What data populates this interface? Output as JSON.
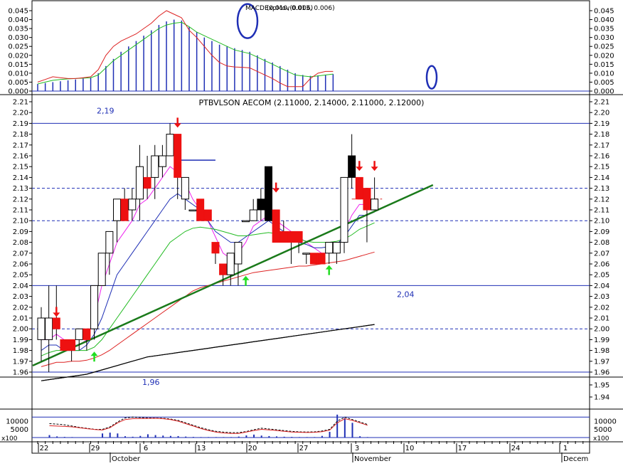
{
  "colors": {
    "background": "#ffffff",
    "frame": "#000000",
    "blue": "#1f2fb5",
    "up_candle": "#ffffff",
    "down_candle": "#ee1111",
    "black_candle": "#000000",
    "magenta": "#ee22ee",
    "green_ma": "#22bb22",
    "red_line": "#dd2222",
    "trendline": "#1a7a1a",
    "arrow_down": "#ee1111",
    "arrow_up": "#22dd22",
    "dashed": "#1f2fb5"
  },
  "chart_data": [
    {
      "id": "macd",
      "type": "line",
      "title": "MACD (0.010, 0.013, 0.006)",
      "title_overlap": "ExpMov(0.006)",
      "yticks": [
        "0.045",
        "0.040",
        "0.035",
        "0.030",
        "0.025",
        "0.020",
        "0.015",
        "0.010",
        "0.005",
        "0.000"
      ],
      "ylim": [
        0,
        0.048
      ],
      "series": [
        {
          "color": "red",
          "values": [
            0.005,
            0.0065,
            0.008,
            0.0075,
            0.007,
            0.007,
            0.0075,
            0.008,
            0.012,
            0.02,
            0.025,
            0.028,
            0.03,
            0.032,
            0.035,
            0.038,
            0.042,
            0.045,
            0.043,
            0.041,
            0.034,
            0.03,
            0.025,
            0.02,
            0.016,
            0.014,
            0.0135,
            0.0133,
            0.013,
            0.011,
            0.009,
            0.007,
            0.0045,
            0.0025,
            0.0025,
            0.0025,
            0.007,
            0.01,
            0.011,
            0.011
          ]
        },
        {
          "color": "green",
          "values": [
            0.004,
            0.005,
            0.006,
            0.0065,
            0.0068,
            0.007,
            0.0072,
            0.0075,
            0.009,
            0.013,
            0.017,
            0.02,
            0.023,
            0.026,
            0.029,
            0.032,
            0.035,
            0.037,
            0.038,
            0.0385,
            0.036,
            0.033,
            0.031,
            0.029,
            0.027,
            0.025,
            0.023,
            0.022,
            0.021,
            0.019,
            0.017,
            0.015,
            0.013,
            0.011,
            0.009,
            0.0085,
            0.008,
            0.0085,
            0.009,
            0.0095
          ]
        }
      ],
      "histogram": [
        0.004,
        0.0045,
        0.005,
        0.0055,
        0.006,
        0.0065,
        0.007,
        0.0075,
        0.01,
        0.014,
        0.018,
        0.022,
        0.025,
        0.028,
        0.031,
        0.034,
        0.037,
        0.039,
        0.04,
        0.0395,
        0.036,
        0.033,
        0.03,
        0.028,
        0.026,
        0.025,
        0.024,
        0.023,
        0.022,
        0.02,
        0.018,
        0.016,
        0.014,
        0.012,
        0.01,
        0.009,
        0.0085,
        0.0088,
        0.009,
        0.0095
      ],
      "circles_at_index": [
        20,
        37
      ]
    },
    {
      "id": "price",
      "type": "candlestick",
      "title": "PTBVLSON AECOM (2.11000, 2.14000, 2.11000, 2.12000)",
      "yticks": [
        "2.21",
        "2.20",
        "2.19",
        "2.18",
        "2.17",
        "2.16",
        "2.15",
        "2.14",
        "2.13",
        "2.12",
        "2.11",
        "2.10",
        "2.09",
        "2.08",
        "2.07",
        "2.06",
        "2.05",
        "2.04",
        "2.03",
        "2.02",
        "2.01",
        "2.00",
        "1.99",
        "1.98",
        "1.97",
        "1.96"
      ],
      "ylim": [
        1.96,
        2.21
      ],
      "level_labels": [
        {
          "text": "2,19",
          "value": 2.19
        },
        {
          "text": "2,04",
          "value": 2.04
        }
      ],
      "hlines_solid": [
        2.19,
        2.04,
        1.96
      ],
      "hlines_dashed": [
        2.13,
        2.1,
        2.0
      ],
      "candles": [
        {
          "o": 1.99,
          "h": 2.02,
          "l": 1.97,
          "c": 2.01,
          "k": "up"
        },
        {
          "o": 2.01,
          "h": 2.04,
          "l": 1.96,
          "c": 1.99,
          "k": "up"
        },
        {
          "o": 2.01,
          "h": 2.04,
          "l": 1.99,
          "c": 2.0,
          "k": "down"
        },
        {
          "o": 1.99,
          "h": 1.99,
          "l": 1.98,
          "c": 1.98,
          "k": "down"
        },
        {
          "o": 1.99,
          "h": 1.99,
          "l": 1.97,
          "c": 1.98,
          "k": "down"
        },
        {
          "o": 1.99,
          "h": 2.0,
          "l": 1.98,
          "c": 2.0,
          "k": "up"
        },
        {
          "o": 2.0,
          "h": 2.0,
          "l": 1.98,
          "c": 1.99,
          "k": "down"
        },
        {
          "o": 2.0,
          "h": 2.04,
          "l": 1.99,
          "c": 2.04,
          "k": "up"
        },
        {
          "o": 2.04,
          "h": 2.07,
          "l": 2.04,
          "c": 2.07,
          "k": "up"
        },
        {
          "o": 2.07,
          "h": 2.09,
          "l": 2.05,
          "c": 2.09,
          "k": "up"
        },
        {
          "o": 2.1,
          "h": 2.12,
          "l": 2.08,
          "c": 2.12,
          "k": "up"
        },
        {
          "o": 2.12,
          "h": 2.13,
          "l": 2.1,
          "c": 2.1,
          "k": "down"
        },
        {
          "o": 2.11,
          "h": 2.13,
          "l": 2.1,
          "c": 2.12,
          "k": "up"
        },
        {
          "o": 2.12,
          "h": 2.17,
          "l": 2.1,
          "c": 2.15,
          "k": "up"
        },
        {
          "o": 2.14,
          "h": 2.16,
          "l": 2.12,
          "c": 2.13,
          "k": "down"
        },
        {
          "o": 2.14,
          "h": 2.17,
          "l": 2.12,
          "c": 2.16,
          "k": "up"
        },
        {
          "o": 2.15,
          "h": 2.17,
          "l": 2.14,
          "c": 2.16,
          "k": "up"
        },
        {
          "o": 2.16,
          "h": 2.19,
          "l": 2.16,
          "c": 2.18,
          "k": "up"
        },
        {
          "o": 2.18,
          "h": 2.18,
          "l": 2.12,
          "c": 2.14,
          "k": "down"
        },
        {
          "o": 2.14,
          "h": 2.14,
          "l": 2.11,
          "c": 2.12,
          "k": "up"
        },
        {
          "o": 2.11,
          "h": 2.11,
          "l": 2.11,
          "c": 2.11,
          "k": "up"
        },
        {
          "o": 2.12,
          "h": 2.12,
          "l": 2.1,
          "c": 2.1,
          "k": "down"
        },
        {
          "o": 2.11,
          "h": 2.11,
          "l": 2.1,
          "c": 2.1,
          "k": "down"
        },
        {
          "o": 2.08,
          "h": 2.08,
          "l": 2.06,
          "c": 2.07,
          "k": "down"
        },
        {
          "o": 2.06,
          "h": 2.06,
          "l": 2.04,
          "c": 2.05,
          "k": "down"
        },
        {
          "o": 2.05,
          "h": 2.07,
          "l": 2.04,
          "c": 2.07,
          "k": "up"
        },
        {
          "o": 2.06,
          "h": 2.08,
          "l": 2.04,
          "c": 2.08,
          "k": "up"
        },
        {
          "o": 2.1,
          "h": 2.1,
          "l": 2.1,
          "c": 2.1,
          "k": "up"
        },
        {
          "o": 2.1,
          "h": 2.12,
          "l": 2.1,
          "c": 2.11,
          "k": "up"
        },
        {
          "o": 2.11,
          "h": 2.13,
          "l": 2.1,
          "c": 2.12,
          "k": "black"
        },
        {
          "o": 2.1,
          "h": 2.15,
          "l": 2.1,
          "c": 2.15,
          "k": "black"
        },
        {
          "o": 2.11,
          "h": 2.11,
          "l": 2.08,
          "c": 2.08,
          "k": "down"
        },
        {
          "o": 2.09,
          "h": 2.1,
          "l": 2.08,
          "c": 2.08,
          "k": "down"
        },
        {
          "o": 2.09,
          "h": 2.09,
          "l": 2.06,
          "c": 2.08,
          "k": "down"
        },
        {
          "o": 2.09,
          "h": 2.09,
          "l": 2.07,
          "c": 2.08,
          "k": "down"
        },
        {
          "o": 2.07,
          "h": 2.07,
          "l": 2.06,
          "c": 2.07,
          "k": "up"
        },
        {
          "o": 2.07,
          "h": 2.07,
          "l": 2.06,
          "c": 2.06,
          "k": "down"
        },
        {
          "o": 2.07,
          "h": 2.07,
          "l": 2.06,
          "c": 2.06,
          "k": "down"
        },
        {
          "o": 2.07,
          "h": 2.08,
          "l": 2.06,
          "c": 2.08,
          "k": "up"
        },
        {
          "o": 2.07,
          "h": 2.08,
          "l": 2.06,
          "c": 2.08,
          "k": "up"
        },
        {
          "o": 2.08,
          "h": 2.14,
          "l": 2.07,
          "c": 2.14,
          "k": "up"
        },
        {
          "o": 2.14,
          "h": 2.18,
          "l": 2.13,
          "c": 2.16,
          "k": "black"
        },
        {
          "o": 2.14,
          "h": 2.14,
          "l": 2.12,
          "c": 2.12,
          "k": "down"
        },
        {
          "o": 2.13,
          "h": 2.13,
          "l": 2.08,
          "c": 2.11,
          "k": "down"
        },
        {
          "o": 2.11,
          "h": 2.14,
          "l": 2.11,
          "c": 2.12,
          "k": "up"
        }
      ],
      "moving_averages": [
        {
          "color": "magenta",
          "values": [
            1.99,
            1.99,
            1.995,
            1.99,
            1.985,
            1.985,
            1.99,
            2.01,
            2.04,
            2.06,
            2.08,
            2.09,
            2.1,
            2.115,
            2.12,
            2.13,
            2.14,
            2.15,
            2.145,
            2.135,
            2.12,
            2.11,
            2.1,
            2.085,
            2.07,
            2.065,
            2.07,
            2.08,
            2.095,
            2.1,
            2.105,
            2.1,
            2.095,
            2.09,
            2.085,
            2.08,
            2.075,
            2.07,
            2.07,
            2.075,
            2.09,
            2.105,
            2.115,
            2.115,
            2.115
          ]
        },
        {
          "color": "blue",
          "values": [
            1.98,
            1.985,
            1.985,
            1.98,
            1.98,
            1.98,
            1.985,
            1.995,
            2.01,
            2.03,
            2.05,
            2.06,
            2.07,
            2.08,
            2.09,
            2.1,
            2.11,
            2.12,
            2.125,
            2.12,
            2.115,
            2.11,
            2.1,
            2.09,
            2.085,
            2.08,
            2.08,
            2.085,
            2.09,
            2.095,
            2.1,
            2.095,
            2.09,
            2.085,
            2.08,
            2.078,
            2.075,
            2.075,
            2.076,
            2.078,
            2.085,
            2.095,
            2.105,
            2.105,
            2.108
          ]
        },
        {
          "color": "green",
          "values": [
            1.975,
            1.978,
            1.98,
            1.98,
            1.98,
            1.98,
            1.98,
            1.983,
            1.99,
            2.0,
            2.01,
            2.02,
            2.03,
            2.04,
            2.05,
            2.06,
            2.07,
            2.08,
            2.085,
            2.09,
            2.093,
            2.094,
            2.093,
            2.092,
            2.09,
            2.088,
            2.086,
            2.086,
            2.087,
            2.088,
            2.089,
            2.088,
            2.087,
            2.085,
            2.083,
            2.081,
            2.08,
            2.08,
            2.08,
            2.081,
            2.083,
            2.087,
            2.092,
            2.095,
            2.098
          ]
        },
        {
          "color": "red",
          "values": [
            1.965,
            1.967,
            1.969,
            1.969,
            1.97,
            1.97,
            1.971,
            1.973,
            1.976,
            1.98,
            1.985,
            1.99,
            1.995,
            2.0,
            2.005,
            2.01,
            2.015,
            2.02,
            2.025,
            2.03,
            2.035,
            2.038,
            2.04,
            2.042,
            2.044,
            2.046,
            2.048,
            2.05,
            2.052,
            2.053,
            2.054,
            2.055,
            2.056,
            2.057,
            2.058,
            2.058,
            2.059,
            2.06,
            2.061,
            2.062,
            2.063,
            2.065,
            2.067,
            2.069,
            2.071
          ]
        },
        {
          "color": "black",
          "values": [
            1.952,
            1.953,
            1.954,
            1.955,
            1.956,
            1.957,
            1.958,
            1.96,
            1.962,
            1.964,
            1.966,
            1.968,
            1.97,
            1.972,
            1.974,
            1.975,
            1.976,
            1.977,
            1.978,
            1.979,
            1.98,
            1.981,
            1.982,
            1.983,
            1.984,
            1.985,
            1.986,
            1.987,
            1.988,
            1.989,
            1.99,
            1.991,
            1.992,
            1.993,
            1.994,
            1.995,
            1.996,
            1.997,
            1.998,
            1.999,
            2.0,
            2.001,
            2.002,
            2.003,
            2.004
          ]
        }
      ],
      "trendline": {
        "from": [
          0,
          1.966
        ],
        "to": [
          52,
          2.133
        ]
      },
      "flat_segments": [
        {
          "from": 18,
          "to": 23,
          "value": 2.156,
          "color": "blue"
        },
        {
          "from": 41,
          "to": 45,
          "value": 2.12,
          "color": "red",
          "dashed": true
        }
      ],
      "arrows_down": [
        {
          "index": 2,
          "value": 2.015
        },
        {
          "index": 18,
          "value": 2.19
        },
        {
          "index": 31,
          "value": 2.13
        },
        {
          "index": 42,
          "value": 2.15
        },
        {
          "index": 44,
          "value": 2.15
        }
      ],
      "arrows_up": [
        {
          "index": 7,
          "value": 1.975
        },
        {
          "index": 27,
          "value": 2.045
        },
        {
          "index": 38,
          "value": 2.055
        }
      ]
    },
    {
      "id": "trend",
      "type": "line",
      "yticks": [
        "1.95",
        "1.94"
      ],
      "level_labels": [
        {
          "text": "1,96"
        }
      ]
    },
    {
      "id": "volume",
      "type": "bar",
      "yticks": [
        "10000",
        "5000"
      ],
      "unit_label": "x100",
      "ylim": [
        0,
        15000
      ],
      "values": [
        1500,
        700,
        400,
        300,
        200,
        200,
        200,
        2500,
        3000,
        2500,
        800,
        500,
        1000,
        2000,
        1500,
        1200,
        1000,
        900,
        600,
        400,
        300,
        300,
        300,
        300,
        300,
        600,
        1300,
        1800,
        1200,
        900,
        700,
        500,
        400,
        300,
        300,
        300,
        1000,
        3500,
        14000,
        12000,
        9000,
        800,
        300
      ],
      "lines": [
        {
          "color": "red",
          "values": [
            7200,
            7000,
            6800,
            6500,
            6000,
            5400,
            4900,
            4600,
            6000,
            9000,
            11000,
            11500,
            11600,
            11700,
            11800,
            11500,
            11000,
            10000,
            8500,
            7000,
            5500,
            4300,
            3300,
            2800,
            2500,
            2500,
            3400,
            4300,
            5000,
            4700,
            4300,
            3800,
            3400,
            3200,
            3100,
            3200,
            3600,
            4500,
            9000,
            11500,
            10500,
            9000,
            7500
          ]
        },
        {
          "color": "black",
          "dashed": true,
          "values": [
            8500,
            8200,
            7800,
            7000,
            6200,
            5600,
            5000,
            5000,
            6500,
            9500,
            12000,
            12500,
            12200,
            12000,
            11900,
            11800,
            11300,
            10500,
            9000,
            7500,
            6000,
            4800,
            3800,
            3300,
            3000,
            3000,
            3700,
            4800,
            5700,
            5200,
            4800,
            4200,
            3800,
            3500,
            3400,
            3500,
            4000,
            5000,
            10000,
            12500,
            11000,
            9500,
            8000
          ]
        }
      ],
      "hlines": [
        12500,
        0
      ]
    }
  ],
  "time_axis": {
    "date_labels": [
      "22",
      "29",
      "6",
      "13",
      "20",
      "27",
      "3",
      "10",
      "17",
      "24",
      "1"
    ],
    "month_labels": [
      "October",
      "November",
      "Decem"
    ]
  }
}
